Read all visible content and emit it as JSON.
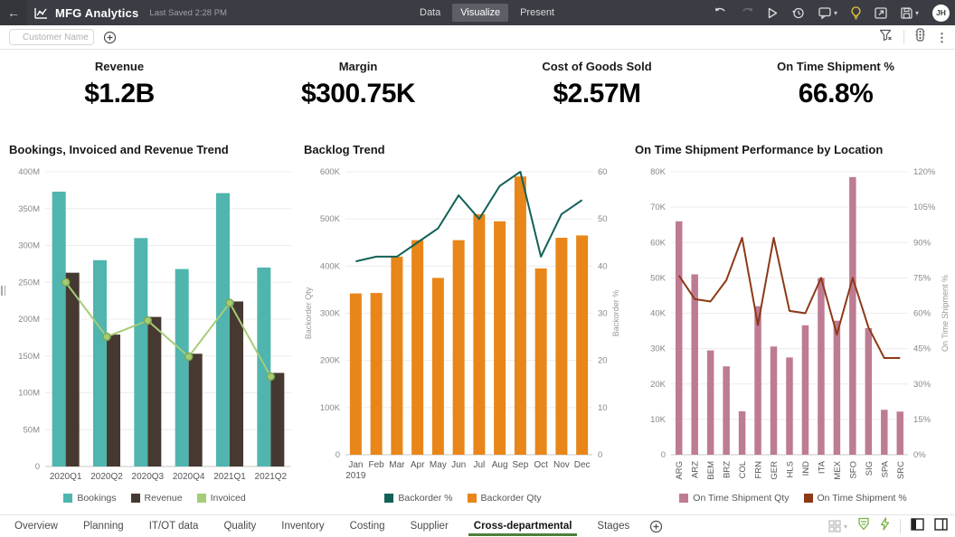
{
  "header": {
    "title": "MFG Analytics",
    "last_saved": "Last Saved 2:28 PM",
    "tabs": [
      {
        "label": "Data",
        "selected": false
      },
      {
        "label": "Visualize",
        "selected": true
      },
      {
        "label": "Present",
        "selected": false
      }
    ],
    "toolbar_icons": [
      "undo",
      "redo",
      "play",
      "history",
      "comment",
      "einstein-lightbulb",
      "open-window",
      "save"
    ],
    "avatar_initials": "JH"
  },
  "filter_bar": {
    "customer_placeholder": "Customer Name",
    "icons": [
      "add-filter",
      "filter-funnel",
      "traffic-light",
      "more-menu"
    ]
  },
  "kpis": [
    {
      "label": "Revenue",
      "value": "$1.2B"
    },
    {
      "label": "Margin",
      "value": "$300.75K"
    },
    {
      "label": "Cost of Goods Sold",
      "value": "$2.57M"
    },
    {
      "label": "On Time Shipment %",
      "value": "66.8%"
    }
  ],
  "charts": [
    {
      "title": "Bookings, Invoiced and Revenue Trend",
      "chart_data": {
        "type": "combo",
        "categories": [
          "2020Q1",
          "2020Q2",
          "2020Q3",
          "2020Q4",
          "2021Q1",
          "2021Q2"
        ],
        "ylim": [
          0,
          400
        ],
        "yticks": [
          0,
          50,
          100,
          150,
          200,
          250,
          300,
          350,
          400
        ],
        "ytick_labels": [
          "0",
          "50M",
          "100M",
          "150M",
          "200M",
          "250M",
          "300M",
          "350M",
          "400M"
        ],
        "series": [
          {
            "name": "Bookings",
            "type": "bar",
            "axis": "left",
            "color": "#4FB5AE",
            "values": [
              373,
              280,
              310,
              268,
              371,
              270
            ]
          },
          {
            "name": "Revenue",
            "type": "bar",
            "axis": "left",
            "color": "#463931",
            "values": [
              263,
              179,
              203,
              153,
              224,
              127
            ]
          },
          {
            "name": "Invoiced",
            "type": "line",
            "axis": "left",
            "color": "#A6CC78",
            "marker": true,
            "marker_stroke": "#7BA84F",
            "values": [
              250,
              176,
              198,
              149,
              222,
              122
            ]
          }
        ]
      }
    },
    {
      "title": "Backlog Trend",
      "chart_data": {
        "type": "combo",
        "categories": [
          "Jan",
          "Feb",
          "Mar",
          "Apr",
          "May",
          "Jun",
          "Jul",
          "Aug",
          "Sep",
          "Oct",
          "Nov",
          "Dec"
        ],
        "x_first_sublabel": "2019",
        "left_axis_label": "Backorder Qty",
        "right_axis_label": "Backorder %",
        "ylim": [
          0,
          600
        ],
        "yticks": [
          0,
          100,
          200,
          300,
          400,
          500,
          600
        ],
        "ytick_labels": [
          "0",
          "100K",
          "200K",
          "300K",
          "400K",
          "500K",
          "600K"
        ],
        "y2lim": [
          0,
          60
        ],
        "y2ticks": [
          0,
          10,
          20,
          30,
          40,
          50,
          60
        ],
        "y2tick_labels": [
          "0",
          "10",
          "20",
          "30",
          "40",
          "50",
          "60"
        ],
        "series": [
          {
            "name": "Backorder %",
            "type": "line",
            "axis": "right",
            "color": "#116157",
            "values": [
              41,
              42,
              42,
              45,
              48,
              55,
              50,
              57,
              60,
              42,
              51,
              54
            ]
          },
          {
            "name": "Backorder Qty",
            "type": "bar",
            "axis": "left",
            "color": "#E8861A",
            "values": [
              342,
              343,
              420,
              455,
              375,
              455,
              510,
              495,
              590,
              395,
              460,
              465
            ]
          }
        ]
      }
    },
    {
      "title": "On Time Shipment Performance by Location",
      "chart_data": {
        "type": "combo",
        "categories": [
          "ARG",
          "ARZ",
          "BEM",
          "BRZ",
          "COL",
          "FRN",
          "GER",
          "HLS",
          "IND",
          "ITA",
          "MEX",
          "SFO",
          "SIG",
          "SPA",
          "SRC"
        ],
        "rotate_x_labels": true,
        "right_axis_label": "On Time Shipment %",
        "ylim": [
          0,
          80
        ],
        "yticks": [
          0,
          10,
          20,
          30,
          40,
          50,
          60,
          70,
          80
        ],
        "ytick_labels": [
          "0",
          "10K",
          "20K",
          "30K",
          "40K",
          "50K",
          "60K",
          "70K",
          "80K"
        ],
        "y2lim": [
          0,
          120
        ],
        "y2ticks": [
          0,
          15,
          30,
          45,
          60,
          75,
          90,
          105,
          120
        ],
        "y2tick_labels": [
          "0%",
          "15%",
          "30%",
          "45%",
          "60%",
          "75%",
          "90%",
          "105%",
          "120%"
        ],
        "series": [
          {
            "name": "On Time Shipment Qty",
            "type": "bar",
            "axis": "left",
            "color": "#BE7B94",
            "values": [
              66,
              51,
              29.5,
              25,
              12.3,
              42,
              30.6,
              27.5,
              36.6,
              50,
              37.9,
              78.5,
              35.8,
              12.7,
              12.2
            ]
          },
          {
            "name": "On Time Shipment %",
            "type": "line",
            "axis": "right",
            "color": "#8C3A16",
            "values": [
              76,
              66,
              65,
              74,
              92,
              55,
              92,
              61,
              60,
              75,
              51,
              75,
              54,
              41,
              41
            ]
          }
        ]
      }
    }
  ],
  "footer": {
    "tabs": [
      {
        "label": "Overview",
        "active": false
      },
      {
        "label": "Planning",
        "active": false
      },
      {
        "label": "IT/OT data",
        "active": false
      },
      {
        "label": "Quality",
        "active": false
      },
      {
        "label": "Inventory",
        "active": false
      },
      {
        "label": "Costing",
        "active": false
      },
      {
        "label": "Supplier",
        "active": false
      },
      {
        "label": "Cross-departmental",
        "active": true
      },
      {
        "label": "Stages",
        "active": false
      }
    ],
    "icons": [
      "add-page",
      "grid-layout",
      "filter-panel",
      "quick-actions",
      "panel-left",
      "panel-right"
    ]
  },
  "colors": {
    "accent_green": "#4E7F3C",
    "bulb_yellow": "#F2C335",
    "header_bg": "#3A3D43",
    "green_icon": "#76B043"
  }
}
